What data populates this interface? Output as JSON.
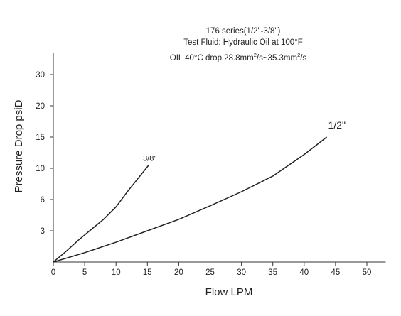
{
  "chart_data": {
    "type": "line",
    "title_lines": [
      "176 series(1/2\"-3/8\")",
      "Test Fluid: Hydraulic Oil at 100°F"
    ],
    "subtitle_parts": {
      "a": "OIL 40°C drop 28.8mm",
      "b": "/s~35.3mm",
      "c": "/s",
      "sup": "2"
    },
    "xlabel": "Flow LPM",
    "ylabel": "Pressure Drop psiD",
    "xlim": [
      0,
      53
    ],
    "x_ticks": [
      0,
      5,
      10,
      15,
      20,
      25,
      30,
      35,
      40,
      45,
      50
    ],
    "y_ticks": [
      0,
      3,
      6,
      10,
      15,
      20,
      30
    ],
    "y_tick_labels": [
      "0",
      "3",
      "6",
      "10",
      "15",
      "20",
      "30"
    ],
    "y_scale_note": "non-linear tick spacing",
    "grid": false,
    "series": [
      {
        "name": "3/8\"",
        "x": [
          0,
          2,
          4,
          6,
          8,
          10,
          12,
          13.5,
          15.2
        ],
        "y": [
          0,
          1.0,
          2.1,
          3.1,
          4.1,
          5.3,
          7.2,
          8.7,
          10.5
        ]
      },
      {
        "name": "1/2\"",
        "x": [
          0,
          5,
          10,
          15,
          20,
          25,
          30,
          35,
          40,
          43.6
        ],
        "y": [
          0,
          0.9,
          1.9,
          3.0,
          4.1,
          5.4,
          7.0,
          9.0,
          12.2,
          15.0
        ]
      }
    ],
    "colors": {
      "line": "#222222",
      "axis": "#333333",
      "text": "#222222"
    }
  }
}
